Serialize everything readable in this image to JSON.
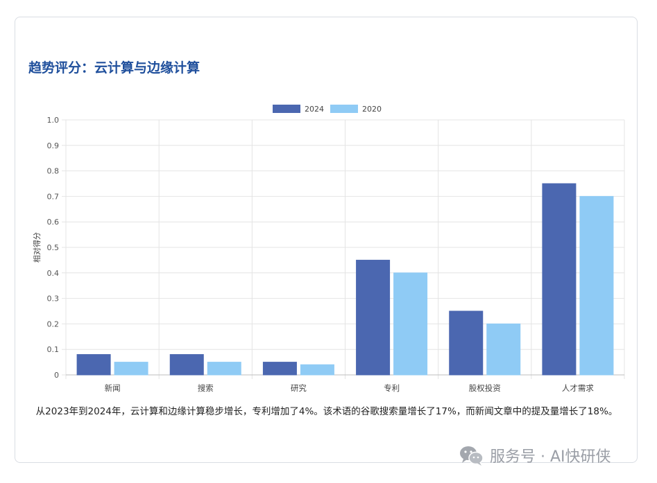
{
  "title": "趋势评分：云计算与边缘计算",
  "caption": "从2023年到2024年，云计算和边缘计算稳步增长，专利增加了4%。该术语的谷歌搜索量增长了17%，而新闻文章中的提及量增长了18%。",
  "watermark": {
    "text": "服务号 · AI快研侠",
    "icon": "wechat-icon"
  },
  "colors": {
    "series_2024": "#4b67b0",
    "series_2020": "#8fcbf5",
    "title": "#1f4f9c",
    "grid": "#e4e4e4"
  },
  "chart_data": {
    "type": "bar",
    "categories": [
      "新闻",
      "搜索",
      "研究",
      "专利",
      "股权投资",
      "人才需求"
    ],
    "series": [
      {
        "name": "2024",
        "values": [
          0.08,
          0.08,
          0.05,
          0.45,
          0.25,
          0.75
        ]
      },
      {
        "name": "2020",
        "values": [
          0.05,
          0.05,
          0.04,
          0.4,
          0.2,
          0.7
        ]
      }
    ],
    "ylabel": "相对得分",
    "xlabel": "",
    "ylim": [
      0,
      1.0
    ],
    "yticks": [
      "0",
      "0.1",
      "0.2",
      "0.3",
      "0.4",
      "0.5",
      "0.6",
      "0.7",
      "0.8",
      "0.9",
      "1.0"
    ],
    "grid": true,
    "legend": "top-center"
  }
}
